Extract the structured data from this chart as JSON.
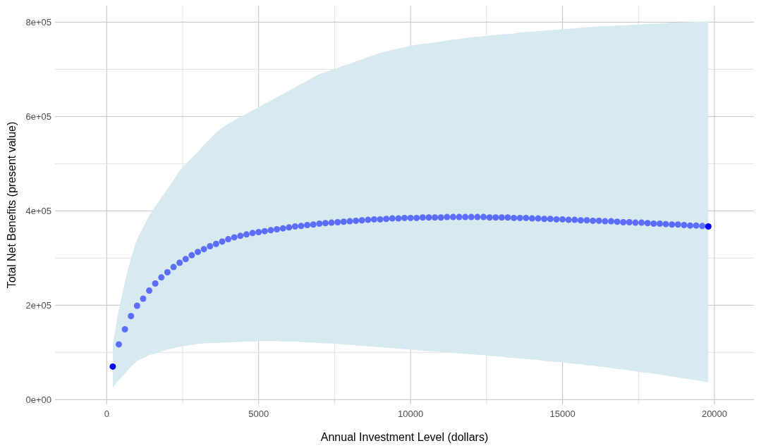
{
  "chart_data": {
    "type": "scatter",
    "xlabel": "Annual Investment Level (dollars)",
    "ylabel": "Total Net Benefits (present value)",
    "xlim": [
      -1700,
      21300
    ],
    "ylim": [
      -10000,
      835000
    ],
    "xticks": [
      0,
      {
        "value": 2500,
        "label": null
      },
      5000,
      {
        "value": 7500,
        "label": null
      },
      10000,
      {
        "value": 12500,
        "label": null
      },
      15000,
      {
        "value": 17500,
        "label": null
      },
      20000
    ],
    "yticks": [
      {
        "value": 0,
        "label": "0e+00"
      },
      {
        "value": 100000,
        "label": null
      },
      {
        "value": 200000,
        "label": "2e+05"
      },
      {
        "value": 300000,
        "label": null
      },
      {
        "value": 400000,
        "label": "4e+05"
      },
      {
        "value": 500000,
        "label": null
      },
      {
        "value": 600000,
        "label": "6e+05"
      },
      {
        "value": 700000,
        "label": null
      },
      {
        "value": 800000,
        "label": "8e+05"
      }
    ],
    "grid": true,
    "marker": "circle",
    "series": [
      {
        "colors": [
          "#0000ff",
          "#5b6cff",
          "#5b6cff",
          "#5b6cff",
          "#5b6cff",
          "#5b6cff",
          "#5b6cff",
          "#5b6cff",
          "#5b6cff",
          "#5b6cff",
          "#5b6cff",
          "#5b6cff",
          "#5b6cff",
          "#5b6cff",
          "#5b6cff",
          "#5b6cff",
          "#5b6cff",
          "#5b6cff",
          "#5b6cff",
          "#5b6cff",
          "#5b6cff",
          "#5b6cff",
          "#5b6cff",
          "#5b6cff",
          "#5b6cff",
          "#5b6cff",
          "#5b6cff",
          "#5b6cff",
          "#5b6cff",
          "#5b6cff",
          "#5b6cff",
          "#5b6cff",
          "#5b6cff",
          "#5b6cff",
          "#5b6cff",
          "#5b6cff",
          "#5b6cff",
          "#5b6cff",
          "#5b6cff",
          "#5b6cff",
          "#5b6cff",
          "#5b6cff",
          "#5b6cff",
          "#5b6cff",
          "#5b6cff",
          "#5b6cff",
          "#5b6cff",
          "#5b6cff",
          "#5b6cff",
          "#5b6cff",
          "#5b6cff",
          "#5b6cff",
          "#5b6cff",
          "#5b6cff",
          "#5b6cff",
          "#5b6cff",
          "#5b6cff",
          "#5b6cff",
          "#5b6cff",
          "#5b6cff",
          "#5b6cff",
          "#5b6cff",
          "#5b6cff",
          "#5b6cff",
          "#5b6cff",
          "#5b6cff",
          "#5b6cff",
          "#5b6cff",
          "#5b6cff",
          "#5b6cff",
          "#5b6cff",
          "#5b6cff",
          "#5b6cff",
          "#5b6cff",
          "#5b6cff",
          "#5b6cff",
          "#5b6cff",
          "#5b6cff",
          "#5b6cff",
          "#5b6cff",
          "#5b6cff",
          "#5b6cff",
          "#5b6cff",
          "#5b6cff",
          "#5b6cff",
          "#5b6cff",
          "#5b6cff",
          "#5b6cff",
          "#5b6cff",
          "#5b6cff",
          "#5b6cff",
          "#5b6cff",
          "#5b6cff",
          "#5b6cff",
          "#5b6cff",
          "#5b6cff",
          "#5b6cff",
          "#5b6cff",
          "#0000ff"
        ],
        "x": [
          200,
          400,
          600,
          800,
          1000,
          1200,
          1400,
          1600,
          1800,
          2000,
          2200,
          2400,
          2600,
          2800,
          3000,
          3200,
          3400,
          3600,
          3800,
          4000,
          4200,
          4400,
          4600,
          4800,
          5000,
          5200,
          5400,
          5600,
          5800,
          6000,
          6200,
          6400,
          6600,
          6800,
          7000,
          7200,
          7400,
          7600,
          7800,
          8000,
          8200,
          8400,
          8600,
          8800,
          9000,
          9200,
          9400,
          9600,
          9800,
          10000,
          10200,
          10400,
          10600,
          10800,
          11000,
          11200,
          11400,
          11600,
          11800,
          12000,
          12200,
          12400,
          12600,
          12800,
          13000,
          13200,
          13400,
          13600,
          13800,
          14000,
          14200,
          14400,
          14600,
          14800,
          15000,
          15200,
          15400,
          15600,
          15800,
          16000,
          16200,
          16400,
          16600,
          16800,
          17000,
          17200,
          17400,
          17600,
          17800,
          18000,
          18200,
          18400,
          18600,
          18800,
          19000,
          19200,
          19400,
          19600,
          19800
        ],
        "values": [
          70000,
          117000,
          149000,
          177000,
          199000,
          214000,
          231000,
          246000,
          259000,
          270000,
          281000,
          290000,
          298000,
          306000,
          313000,
          319000,
          325000,
          330000,
          335000,
          340000,
          344000,
          347000,
          350000,
          353000,
          355000,
          357000,
          359000,
          361000,
          363000,
          365000,
          367000,
          368000,
          370000,
          371000,
          373000,
          374000,
          375000,
          376000,
          377000,
          378000,
          379000,
          380000,
          381000,
          382000,
          382000,
          383000,
          384000,
          384000,
          385000,
          385000,
          385000,
          386000,
          386000,
          386000,
          386000,
          387000,
          387000,
          387000,
          387000,
          387000,
          387000,
          387000,
          386000,
          386000,
          386000,
          386000,
          385000,
          385000,
          385000,
          384000,
          384000,
          383000,
          383000,
          382000,
          382000,
          381000,
          381000,
          380000,
          380000,
          379000,
          379000,
          378000,
          378000,
          377000,
          376000,
          376000,
          375000,
          375000,
          374000,
          373000,
          373000,
          372000,
          371000,
          371000,
          370000,
          369000,
          369000,
          368000,
          367000
        ],
        "lower": [
          26000,
          41000,
          55000,
          70000,
          82000,
          88000,
          94000,
          98000,
          102000,
          106000,
          109000,
          112000,
          114000,
          116000,
          118000,
          119000,
          120000,
          120000,
          121000,
          121000,
          122000,
          122000,
          123000,
          123000,
          124000,
          124000,
          124000,
          124000,
          123000,
          123000,
          123000,
          122000,
          121000,
          121000,
          120000,
          119000,
          119000,
          118000,
          117000,
          116000,
          115000,
          114000,
          113000,
          112000,
          111000,
          110000,
          109000,
          108000,
          107000,
          106000,
          105000,
          104000,
          103000,
          102000,
          101000,
          100000,
          99000,
          98000,
          97000,
          96000,
          95000,
          94000,
          93000,
          92000,
          91000,
          89000,
          88000,
          87000,
          86000,
          85000,
          84000,
          82000,
          81000,
          80000,
          79000,
          77000,
          76000,
          75000,
          73000,
          72000,
          70000,
          69000,
          67000,
          65000,
          64000,
          62000,
          60000,
          58000,
          57000,
          55000,
          53000,
          51000,
          49000,
          47000,
          45000,
          43000,
          41000,
          39000,
          37000
        ],
        "upper": [
          117000,
          190000,
          250000,
          300000,
          340000,
          365000,
          390000,
          410000,
          428000,
          446000,
          465000,
          485000,
          500000,
          512000,
          525000,
          540000,
          553000,
          566000,
          576000,
          585000,
          592000,
          599000,
          606000,
          613000,
          620000,
          627000,
          634000,
          641000,
          648000,
          655000,
          662000,
          669000,
          676000,
          683000,
          690000,
          694000,
          699000,
          703000,
          708000,
          712000,
          717000,
          721000,
          726000,
          730000,
          735000,
          738000,
          741000,
          744000,
          747000,
          750000,
          752000,
          754000,
          755000,
          757000,
          759000,
          761000,
          763000,
          764000,
          766000,
          768000,
          769000,
          770000,
          772000,
          773000,
          774000,
          775000,
          776000,
          778000,
          779000,
          780000,
          781000,
          782000,
          783000,
          784000,
          785000,
          786000,
          787000,
          788000,
          789000,
          790000,
          791000,
          791000,
          792000,
          793000,
          793000,
          794000,
          795000,
          795000,
          796000,
          797000,
          797000,
          798000,
          799000,
          799000,
          800000,
          800000,
          801000,
          801000,
          802000
        ]
      }
    ]
  }
}
